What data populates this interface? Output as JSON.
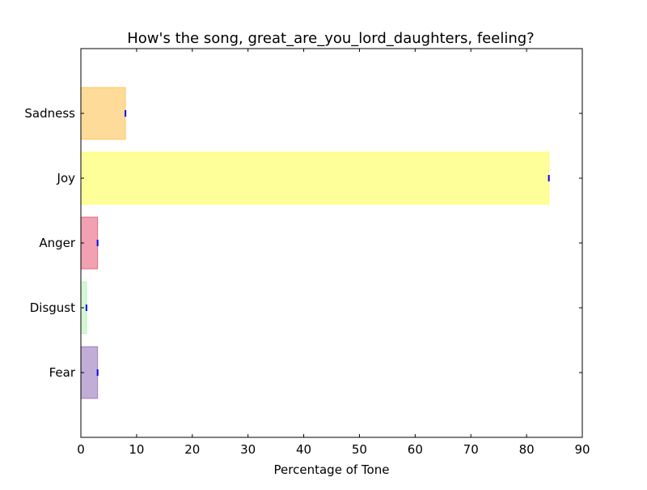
{
  "chart_data": {
    "type": "bar",
    "orientation": "horizontal",
    "title": "How's the song, great_are_you_lord_daughters, feeling?",
    "xlabel": "Percentage of Tone",
    "ylabel": "",
    "categories": [
      "Sadness",
      "Joy",
      "Anger",
      "Disgust",
      "Fear"
    ],
    "values": [
      8,
      84,
      3,
      1,
      3
    ],
    "colors": [
      "#ffa500",
      "#ffff00",
      "#dc143c",
      "#90ee90",
      "#663399"
    ],
    "error_marker_color": "#0000ff",
    "xlim": [
      0,
      90
    ],
    "xticks": [
      "0",
      "10",
      "20",
      "30",
      "40",
      "50",
      "60",
      "70",
      "80",
      "90"
    ],
    "grid": false,
    "legend": "none"
  }
}
